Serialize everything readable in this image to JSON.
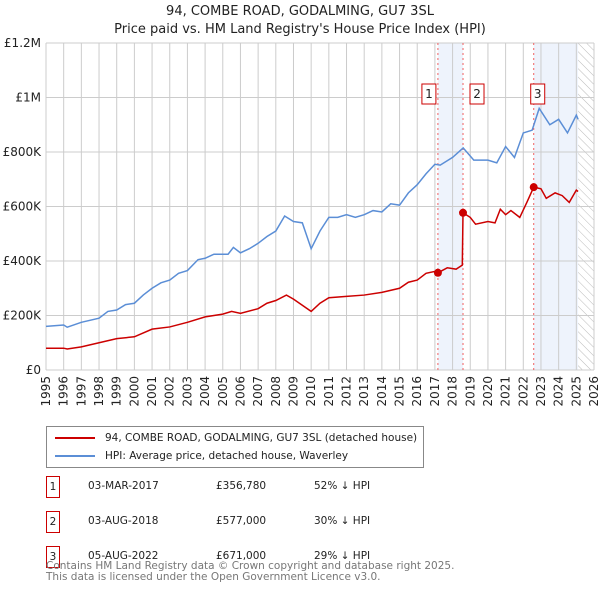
{
  "chart_data": {
    "type": "line",
    "title": "94, COMBE ROAD, GODALMING, GU7 3SL",
    "subtitle": "Price paid vs. HM Land Registry's House Price Index (HPI)",
    "xlim": [
      1995,
      2026
    ],
    "ylim": [
      0,
      1200000
    ],
    "x_ticks": [
      "1995",
      "1996",
      "1997",
      "1998",
      "1999",
      "2000",
      "2001",
      "2002",
      "2003",
      "2004",
      "2005",
      "2006",
      "2007",
      "2008",
      "2009",
      "2010",
      "2011",
      "2012",
      "2013",
      "2014",
      "2015",
      "2016",
      "2017",
      "2018",
      "2019",
      "2020",
      "2021",
      "2022",
      "2023",
      "2024",
      "2025",
      "2026"
    ],
    "y_ticks": [
      {
        "v": 0,
        "label": "£0"
      },
      {
        "v": 200000,
        "label": "£200K"
      },
      {
        "v": 400000,
        "label": "£400K"
      },
      {
        "v": 600000,
        "label": "£600K"
      },
      {
        "v": 800000,
        "label": "£800K"
      },
      {
        "v": 1000000,
        "label": "£1M"
      },
      {
        "v": 1200000,
        "label": "£1.2M"
      }
    ],
    "grid": true,
    "forecast_hatch_from": 2025.1,
    "shaded_ranges": [
      [
        2017.17,
        2018.59
      ],
      [
        2022.59,
        2025.1
      ]
    ],
    "series": [
      {
        "name": "94, COMBE ROAD, GODALMING, GU7 3SL (detached house)",
        "color": "#cc0000",
        "x": [
          1995,
          1996,
          1996.2,
          1997,
          1998,
          1999,
          2000,
          2001,
          2002,
          2003,
          2004,
          2005,
          2005.5,
          2006,
          2007,
          2007.5,
          2008,
          2008.6,
          2009,
          2010,
          2010.5,
          2011,
          2012,
          2013,
          2014,
          2015,
          2015.5,
          2016,
          2016.5,
          2017,
          2017.17,
          2017.7,
          2018.2,
          2018.55,
          2018.59,
          2019,
          2019.3,
          2020,
          2020.4,
          2020.7,
          2021,
          2021.3,
          2021.8,
          2022.2,
          2022.59,
          2023,
          2023.3,
          2023.8,
          2024.2,
          2024.6,
          2025,
          2025.1
        ],
        "y": [
          80000,
          80000,
          77000,
          85000,
          100000,
          115000,
          122000,
          150000,
          158000,
          175000,
          195000,
          205000,
          215000,
          208000,
          225000,
          245000,
          255000,
          275000,
          260000,
          215000,
          245000,
          265000,
          270000,
          275000,
          285000,
          300000,
          322000,
          330000,
          355000,
          362000,
          356780,
          375000,
          370000,
          385000,
          577000,
          560000,
          535000,
          545000,
          540000,
          590000,
          570000,
          585000,
          560000,
          615000,
          671000,
          665000,
          630000,
          650000,
          640000,
          615000,
          660000,
          655000
        ]
      },
      {
        "name": "HPI: Average price, detached house, Waverley",
        "color": "#5b8ed6",
        "x": [
          1995,
          1996,
          1996.2,
          1997,
          1998,
          1998.5,
          1999,
          1999.5,
          2000,
          2000.5,
          2001,
          2001.5,
          2002,
          2002.5,
          2003,
          2003.6,
          2004,
          2004.5,
          2005.3,
          2005.6,
          2006,
          2006.5,
          2007,
          2007.5,
          2008,
          2008.5,
          2009,
          2009.5,
          2010,
          2010.5,
          2011,
          2011.5,
          2012,
          2012.5,
          2013,
          2013.5,
          2014,
          2014.5,
          2015,
          2015.5,
          2016,
          2016.5,
          2017,
          2017.3,
          2018,
          2018.6,
          2019.2,
          2020,
          2020.5,
          2021,
          2021.5,
          2022,
          2022.5,
          2022.9,
          2023.5,
          2024,
          2024.5,
          2025,
          2025.1
        ],
        "y": [
          160000,
          165000,
          157000,
          175000,
          190000,
          215000,
          220000,
          240000,
          245000,
          275000,
          300000,
          320000,
          330000,
          355000,
          365000,
          405000,
          410000,
          425000,
          425000,
          450000,
          430000,
          445000,
          465000,
          490000,
          510000,
          565000,
          545000,
          540000,
          445000,
          510000,
          560000,
          560000,
          570000,
          560000,
          570000,
          585000,
          580000,
          610000,
          605000,
          650000,
          680000,
          720000,
          755000,
          752000,
          780000,
          815000,
          770000,
          770000,
          760000,
          820000,
          780000,
          870000,
          880000,
          960000,
          900000,
          920000,
          870000,
          935000,
          920000
        ]
      }
    ],
    "annotations": [
      {
        "label": "1",
        "x": 2017.17,
        "y": 356780,
        "date": "03-MAR-2017",
        "price": "£356,780",
        "hpi": "52% ↓ HPI"
      },
      {
        "label": "2",
        "x": 2018.59,
        "y": 577000,
        "date": "03-AUG-2018",
        "price": "£577,000",
        "hpi": "30% ↓ HPI"
      },
      {
        "label": "3",
        "x": 2022.59,
        "y": 671000,
        "date": "05-AUG-2022",
        "price": "£671,000",
        "hpi": "29% ↓ HPI"
      }
    ]
  },
  "footer": {
    "line1": "Contains HM Land Registry data © Crown copyright and database right 2025.",
    "line2": "This data is licensed under the Open Government Licence v3.0."
  }
}
